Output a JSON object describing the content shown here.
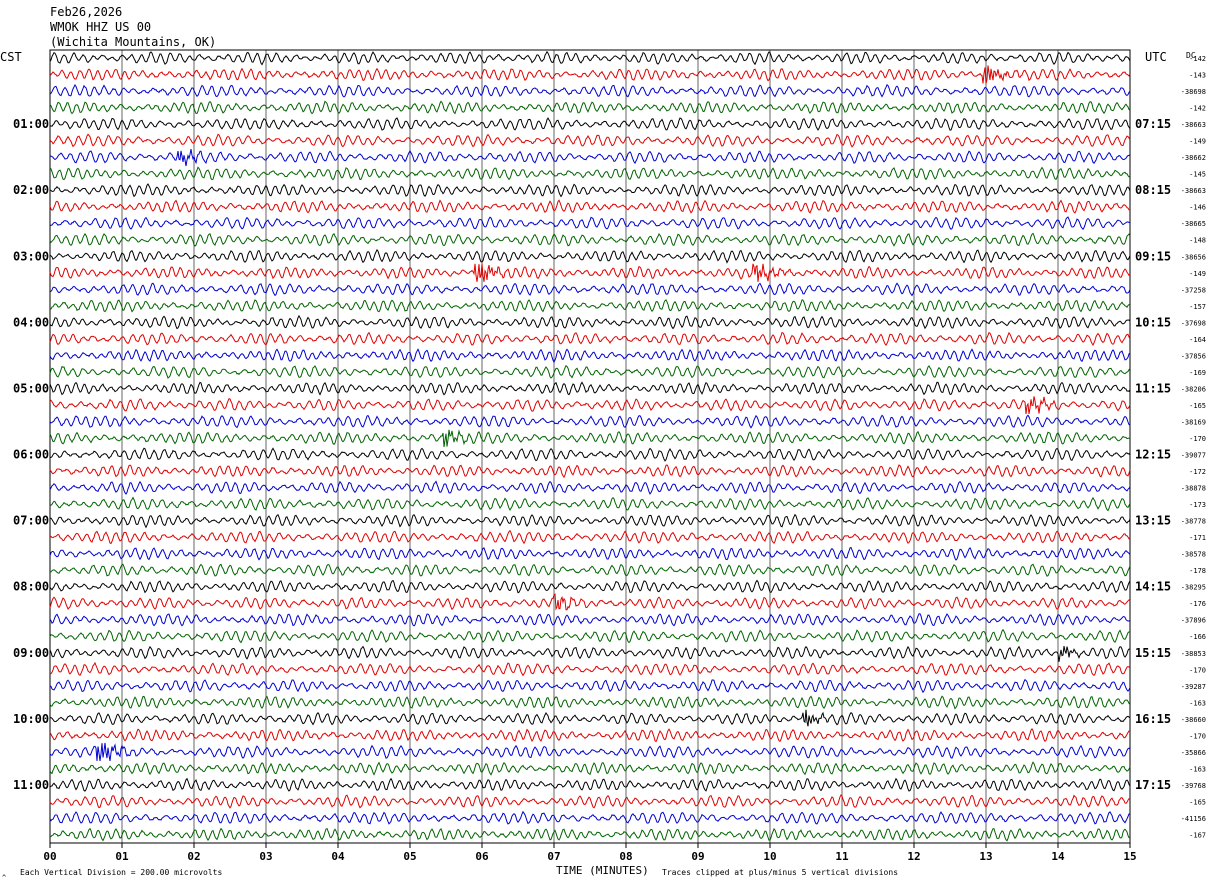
{
  "header": {
    "date": "Feb26,2026",
    "station": "WMOK HHZ US 00",
    "location": "(Wichita Mountains, OK)"
  },
  "axes": {
    "left_tz": "CST",
    "right_tz": "UTC",
    "dc_label": "DC",
    "x_title": "TIME (MINUTES)"
  },
  "footer": {
    "scale_note": "Each Vertical Division =  200.00 microvolts",
    "clip_note": "Traces clipped at plus/minus 5 vertical divisions"
  },
  "chart_data": {
    "type": "line",
    "title": "WMOK HHZ US 00",
    "xlabel": "TIME (MINUTES)",
    "ylabel": "",
    "xlim": [
      0,
      15
    ],
    "grid": true,
    "x_ticks": [
      "00",
      "01",
      "02",
      "03",
      "04",
      "05",
      "06",
      "07",
      "08",
      "09",
      "10",
      "11",
      "12",
      "13",
      "14",
      "15"
    ],
    "left_hour_labels": [
      "01:00",
      "02:00",
      "03:00",
      "04:00",
      "05:00",
      "06:00",
      "07:00",
      "08:00",
      "09:00",
      "10:00",
      "11:00"
    ],
    "right_hour_labels": [
      "07:15",
      "08:15",
      "09:15",
      "10:15",
      "11:15",
      "12:15",
      "13:15",
      "14:15",
      "15:15",
      "16:15",
      "17:15"
    ],
    "trace_colors": [
      "#000000",
      "#e00000",
      "#0000d0",
      "#006400"
    ],
    "dc_values": [
      "-142",
      "-143",
      "-38698",
      "-142",
      "-38663",
      "-149",
      "-38662",
      "-145",
      "-38663",
      "-146",
      "-38665",
      "-148",
      "-38656",
      "-149",
      "-37258",
      "-157",
      "-37698",
      "-164",
      "-37856",
      "-169",
      "-38206",
      "-165",
      "-38169",
      "-170",
      "-39077",
      "-172",
      "-38878",
      "-173",
      "-38778",
      "-171",
      "-38578",
      "-178",
      "-38295",
      "-176",
      "-37896",
      "-166",
      "-38853",
      "-170",
      "-39287",
      "-163",
      "-38660",
      "-170",
      "-35866",
      "-163",
      "-39768",
      "-165",
      "-41156",
      "-167"
    ],
    "events": [
      {
        "trace": 1,
        "minute": 13.0,
        "amp": 2.2
      },
      {
        "trace": 6,
        "minute": 1.8,
        "amp": 1.6
      },
      {
        "trace": 13,
        "minute": 5.95,
        "amp": 2.4
      },
      {
        "trace": 13,
        "minute": 9.8,
        "amp": 2.2
      },
      {
        "trace": 21,
        "minute": 13.6,
        "amp": 1.8
      },
      {
        "trace": 23,
        "minute": 5.5,
        "amp": 1.4
      },
      {
        "trace": 33,
        "minute": 7.05,
        "amp": 1.4
      },
      {
        "trace": 36,
        "minute": 14.05,
        "amp": 1.2
      },
      {
        "trace": 40,
        "minute": 10.5,
        "amp": 1.4
      },
      {
        "trace": 42,
        "minute": 0.7,
        "amp": 2.8
      }
    ]
  }
}
